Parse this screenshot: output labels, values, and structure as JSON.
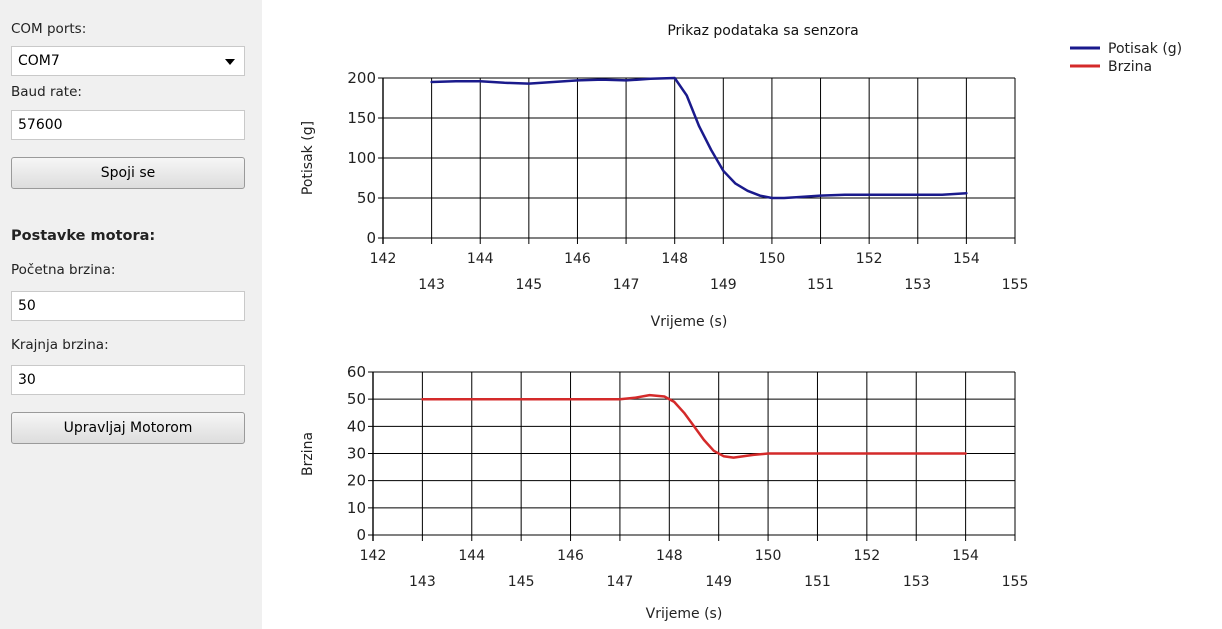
{
  "sidebar": {
    "com_label": "COM ports:",
    "com_value": "COM7",
    "baud_label": "Baud rate:",
    "baud_value": "57600",
    "connect_button": "Spoji se",
    "motor_header": "Postavke motora:",
    "start_speed_label": "Početna brzina:",
    "start_speed_value": "50",
    "end_speed_label": "Krajnja brzina:",
    "end_speed_value": "30",
    "control_button": "Upravljaj Motorom"
  },
  "chart_title": "Prikaz podataka sa senzora",
  "legend": [
    {
      "label": "Potisak (g)",
      "color": "#1a1a8c"
    },
    {
      "label": "Brzina",
      "color": "#d42a2a"
    }
  ],
  "chart_data": [
    {
      "type": "line",
      "title": "Prikaz podataka sa senzora",
      "xlabel": "Vrijeme (s)",
      "ylabel": "Potisak (g]",
      "xlim": [
        142,
        155
      ],
      "ylim": [
        0,
        200
      ],
      "xticks": [
        142,
        143,
        144,
        145,
        146,
        147,
        148,
        149,
        150,
        151,
        152,
        153,
        154,
        155
      ],
      "yticks": [
        0,
        50,
        100,
        150,
        200
      ],
      "grid": true,
      "series": [
        {
          "name": "Potisak (g)",
          "color": "#1a1a8c",
          "x": [
            143,
            143.5,
            144,
            144.5,
            145,
            145.5,
            146,
            146.5,
            147,
            147.5,
            148,
            148.25,
            148.5,
            148.75,
            149,
            149.25,
            149.5,
            149.75,
            150,
            150.25,
            150.5,
            151,
            151.5,
            152,
            152.5,
            153,
            153.5,
            154
          ],
          "y": [
            195,
            196,
            196,
            194,
            193,
            195,
            197,
            198,
            197,
            199,
            200,
            178,
            140,
            110,
            84,
            68,
            59,
            53,
            50,
            50,
            51,
            53,
            54,
            54,
            54,
            54,
            54,
            56
          ]
        }
      ]
    },
    {
      "type": "line",
      "xlabel": "Vrijeme (s)",
      "ylabel": "Brzina",
      "xlim": [
        142,
        155
      ],
      "ylim": [
        0,
        60
      ],
      "xticks": [
        142,
        143,
        144,
        145,
        146,
        147,
        148,
        149,
        150,
        151,
        152,
        153,
        154,
        155
      ],
      "yticks": [
        0,
        10,
        20,
        30,
        40,
        50,
        60
      ],
      "grid": true,
      "series": [
        {
          "name": "Brzina",
          "color": "#d42a2a",
          "x": [
            143,
            143.5,
            144,
            144.5,
            145,
            145.5,
            146,
            146.5,
            147,
            147.3,
            147.6,
            147.9,
            148.1,
            148.3,
            148.5,
            148.7,
            148.9,
            149.1,
            149.3,
            149.5,
            149.7,
            150,
            150.5,
            151,
            152,
            153,
            154
          ],
          "y": [
            50,
            50,
            50,
            50,
            50,
            50,
            50,
            50,
            50,
            50.5,
            51.5,
            51,
            49,
            45,
            40,
            35,
            31,
            29,
            28.5,
            29,
            29.5,
            30,
            30,
            30,
            30,
            30,
            30
          ]
        }
      ]
    }
  ]
}
